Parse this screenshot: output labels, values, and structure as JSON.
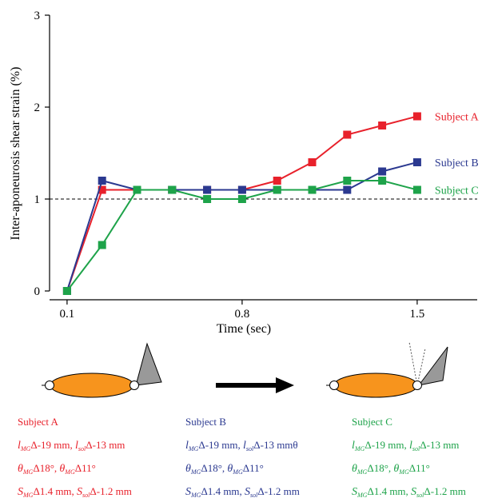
{
  "chart_data": {
    "type": "line",
    "x_label": "Time (sec)",
    "y_label": "Inter-aponeurosis shear strain (%)",
    "x": [
      0.1,
      0.24,
      0.38,
      0.52,
      0.66,
      0.8,
      0.94,
      1.08,
      1.22,
      1.36,
      1.5
    ],
    "xlim": [
      0.03,
      1.74
    ],
    "xticks": [
      0.1,
      0.8,
      1.5
    ],
    "ylim": [
      0,
      3
    ],
    "yticks": [
      0,
      1,
      2,
      3
    ],
    "reference_line": 1,
    "series": [
      {
        "name": "Subject A",
        "color": "#e8212b",
        "values": [
          0,
          1.1,
          1.1,
          1.1,
          1.1,
          1.1,
          1.2,
          1.4,
          1.7,
          1.8,
          1.9
        ]
      },
      {
        "name": "Subject B",
        "color": "#2b3990",
        "values": [
          0,
          1.2,
          1.1,
          1.1,
          1.1,
          1.1,
          1.1,
          1.1,
          1.1,
          1.3,
          1.4
        ]
      },
      {
        "name": "Subject C",
        "color": "#1ea34a",
        "values": [
          0,
          0.5,
          1.1,
          1.1,
          1.0,
          1.0,
          1.1,
          1.1,
          1.2,
          1.2,
          1.1
        ]
      }
    ],
    "annotations": [
      [
        [
          {
            "sym": "l",
            "sub": "MG",
            "text": "Δ-19 mm, "
          },
          {
            "sym": "l",
            "sub": "sol",
            "text": "Δ-13 mm"
          }
        ],
        [
          {
            "sym": "θ",
            "sub": "MG",
            "text": "Δ18°, "
          },
          {
            "sym": "θ",
            "sub": "MG",
            "text": "Δ11°"
          }
        ],
        [
          {
            "sym": "S",
            "sub": "MG",
            "text": "Δ1.4 mm, "
          },
          {
            "sym": "S",
            "sub": "sol",
            "text": "Δ-1.2 mm"
          }
        ]
      ],
      [
        [
          {
            "sym": "l",
            "sub": "MG",
            "text": "Δ-19 mm, "
          },
          {
            "sym": "l",
            "sub": "sol",
            "text": "Δ-13 mmθ"
          }
        ],
        [
          {
            "sym": "θ",
            "sub": "MG",
            "text": "Δ18°, "
          },
          {
            "sym": "θ",
            "sub": "MG",
            "text": "Δ11°"
          }
        ],
        [
          {
            "sym": "S",
            "sub": "MG",
            "text": "Δ1.4 mm, "
          },
          {
            "sym": "S",
            "sub": "sol",
            "text": "Δ-1.2 mm"
          }
        ]
      ],
      [
        [
          {
            "sym": "l",
            "sub": "MG",
            "text": "Δ-19 mm, "
          },
          {
            "sym": "l",
            "sub": "sol",
            "text": "Δ-13 mm"
          }
        ],
        [
          {
            "sym": "θ",
            "sub": "MG",
            "text": "Δ18°, "
          },
          {
            "sym": "θ",
            "sub": "MG",
            "text": "Δ11°"
          }
        ],
        [
          {
            "sym": "S",
            "sub": "MG",
            "text": "Δ1.4 mm, "
          },
          {
            "sym": "S",
            "sub": "sol",
            "text": "Δ-1.2 mm"
          }
        ]
      ]
    ]
  }
}
